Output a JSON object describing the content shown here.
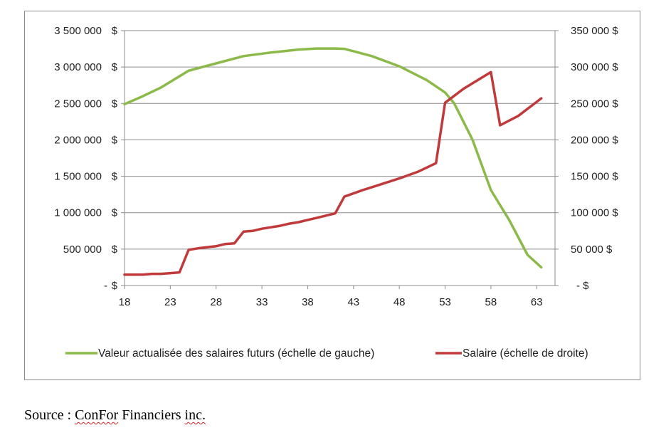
{
  "chart_data": {
    "type": "line",
    "title": "",
    "x_ticks": [
      "18",
      "23",
      "28",
      "33",
      "38",
      "43",
      "48",
      "53",
      "58",
      "63"
    ],
    "y_left_ticks": [
      "- $",
      "500 000  $",
      "1 000 000  $",
      "1 500 000  $",
      "2 000 000  $",
      "2 500 000  $",
      "3 000 000  $",
      "3 500 000  $"
    ],
    "y_right_ticks": [
      "- $",
      "50 000  $",
      "100 000  $",
      "150 000  $",
      "200 000  $",
      "250 000  $",
      "300 000  $",
      "350 000  $"
    ],
    "xlim": [
      18,
      65
    ],
    "y_left_lim": [
      0,
      3500000
    ],
    "y_right_lim": [
      0,
      350000
    ],
    "grid": "horizontal",
    "legend_position": "bottom",
    "series": [
      {
        "name": "Valeur actualisée des salaires futurs (échelle de gauche)",
        "axis": "left",
        "color": "#8cba4a",
        "points": [
          [
            18,
            2490000
          ],
          [
            20,
            2600000
          ],
          [
            22,
            2720000
          ],
          [
            25,
            2950000
          ],
          [
            28,
            3050000
          ],
          [
            31,
            3150000
          ],
          [
            34,
            3200000
          ],
          [
            37,
            3240000
          ],
          [
            39,
            3255000
          ],
          [
            41,
            3255000
          ],
          [
            42,
            3250000
          ],
          [
            45,
            3150000
          ],
          [
            48,
            3010000
          ],
          [
            51,
            2820000
          ],
          [
            53,
            2650000
          ],
          [
            54,
            2500000
          ],
          [
            56,
            2000000
          ],
          [
            58,
            1310000
          ],
          [
            60,
            900000
          ],
          [
            62,
            420000
          ],
          [
            63.5,
            250000
          ]
        ]
      },
      {
        "name": "Salaire (échelle de droite)",
        "axis": "right",
        "color": "#c0393b",
        "points": [
          [
            18,
            15000
          ],
          [
            20,
            15000
          ],
          [
            21,
            16000
          ],
          [
            22,
            16000
          ],
          [
            23,
            17000
          ],
          [
            24,
            18000
          ],
          [
            25,
            49000
          ],
          [
            26,
            51000
          ],
          [
            28,
            54000
          ],
          [
            29,
            57000
          ],
          [
            30,
            58000
          ],
          [
            31,
            74000
          ],
          [
            32,
            75000
          ],
          [
            33,
            78000
          ],
          [
            34,
            80000
          ],
          [
            35,
            82000
          ],
          [
            36,
            85000
          ],
          [
            37,
            87000
          ],
          [
            38,
            90000
          ],
          [
            39,
            93000
          ],
          [
            40,
            96000
          ],
          [
            41,
            99000
          ],
          [
            42,
            122000
          ],
          [
            44,
            131000
          ],
          [
            45,
            135000
          ],
          [
            48,
            147000
          ],
          [
            50,
            156000
          ],
          [
            52,
            168000
          ],
          [
            53,
            251000
          ],
          [
            55,
            270000
          ],
          [
            58,
            293000
          ],
          [
            59,
            220000
          ],
          [
            61,
            233000
          ],
          [
            63.5,
            257000
          ]
        ]
      }
    ]
  },
  "source": {
    "prefix": "Source : ",
    "company": "ConFor",
    "middle": " Financiers ",
    "suffix": "inc."
  }
}
